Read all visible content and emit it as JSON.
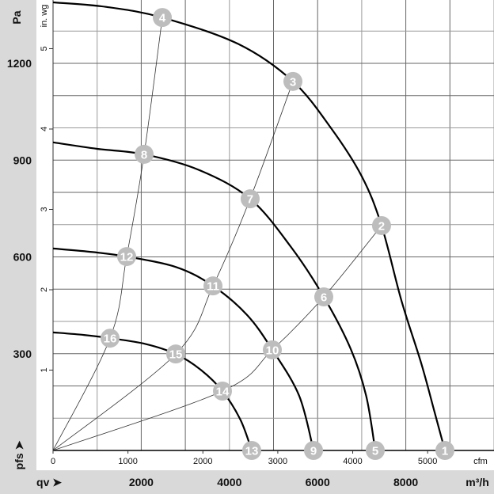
{
  "chart_data": {
    "type": "line",
    "title": "",
    "y_axis_primary": {
      "label": "Pa",
      "ticks": [
        300,
        600,
        900,
        1200
      ],
      "range": [
        0,
        1396
      ]
    },
    "y_axis_secondary": {
      "label": "in. wg",
      "ticks": [
        1,
        2,
        3,
        4,
        5
      ]
    },
    "y_axis_symbol": "pfs",
    "x_axis_primary": {
      "label": "m³/h",
      "ticks": [
        2000,
        4000,
        6000,
        8000
      ],
      "range": [
        0,
        10000
      ]
    },
    "x_axis_secondary": {
      "label": "cfm",
      "ticks": [
        0,
        1000,
        2000,
        3000,
        4000,
        5000
      ]
    },
    "x_axis_symbol": "qv",
    "grid": true,
    "fan_curves": [
      {
        "points": [
          [
            0,
            1389
          ],
          [
            1200,
            1375
          ],
          [
            2478,
            1342
          ],
          [
            4200,
            1260
          ],
          [
            5440,
            1144
          ],
          [
            6300,
            1000
          ],
          [
            7000,
            850
          ],
          [
            7450,
            697
          ],
          [
            7900,
            465
          ],
          [
            8350,
            270
          ],
          [
            8650,
            120
          ],
          [
            8887,
            0
          ]
        ]
      },
      {
        "points": [
          [
            0,
            955
          ],
          [
            1000,
            935
          ],
          [
            2065,
            918
          ],
          [
            3300,
            870
          ],
          [
            4470,
            780
          ],
          [
            5400,
            630
          ],
          [
            6140,
            476
          ],
          [
            6750,
            315
          ],
          [
            7100,
            170
          ],
          [
            7307,
            0
          ]
        ]
      },
      {
        "points": [
          [
            0,
            626
          ],
          [
            900,
            615
          ],
          [
            1670,
            601
          ],
          [
            2800,
            568
          ],
          [
            3627,
            510
          ],
          [
            4400,
            420
          ],
          [
            4973,
            312
          ],
          [
            5580,
            170
          ],
          [
            5907,
            0
          ]
        ]
      },
      {
        "points": [
          [
            0,
            366
          ],
          [
            700,
            358
          ],
          [
            1293,
            348
          ],
          [
            2100,
            330
          ],
          [
            2783,
            299
          ],
          [
            3350,
            250
          ],
          [
            3842,
            184
          ],
          [
            4250,
            95
          ],
          [
            4506,
            0
          ]
        ]
      }
    ],
    "system_curves": [
      {
        "points": [
          [
            0,
            0
          ],
          [
            1293,
            348
          ],
          [
            1670,
            601
          ],
          [
            2065,
            918
          ],
          [
            2478,
            1342
          ]
        ]
      },
      {
        "points": [
          [
            0,
            0
          ],
          [
            2783,
            299
          ],
          [
            3627,
            510
          ],
          [
            4470,
            780
          ],
          [
            5440,
            1144
          ]
        ]
      },
      {
        "points": [
          [
            0,
            0
          ],
          [
            3842,
            184
          ],
          [
            4973,
            312
          ],
          [
            6140,
            476
          ],
          [
            7450,
            697
          ]
        ]
      }
    ],
    "markers": [
      {
        "label": "1",
        "q": 8887,
        "p": 0
      },
      {
        "label": "2",
        "q": 7450,
        "p": 697
      },
      {
        "label": "3",
        "q": 5440,
        "p": 1144
      },
      {
        "label": "4",
        "q": 2478,
        "p": 1342
      },
      {
        "label": "5",
        "q": 7307,
        "p": 0
      },
      {
        "label": "6",
        "q": 6140,
        "p": 476
      },
      {
        "label": "7",
        "q": 4470,
        "p": 780
      },
      {
        "label": "8",
        "q": 2065,
        "p": 918
      },
      {
        "label": "9",
        "q": 5907,
        "p": 0
      },
      {
        "label": "10",
        "q": 4973,
        "p": 312
      },
      {
        "label": "11",
        "q": 3627,
        "p": 510
      },
      {
        "label": "12",
        "q": 1670,
        "p": 601
      },
      {
        "label": "13",
        "q": 4506,
        "p": 0
      },
      {
        "label": "14",
        "q": 3842,
        "p": 184
      },
      {
        "label": "15",
        "q": 2783,
        "p": 299
      },
      {
        "label": "16",
        "q": 1293,
        "p": 348
      }
    ],
    "colors": {
      "band": "#d9d9d9",
      "marker": "#bdbdbd",
      "curve": "#000000",
      "grid": "#666666"
    }
  }
}
